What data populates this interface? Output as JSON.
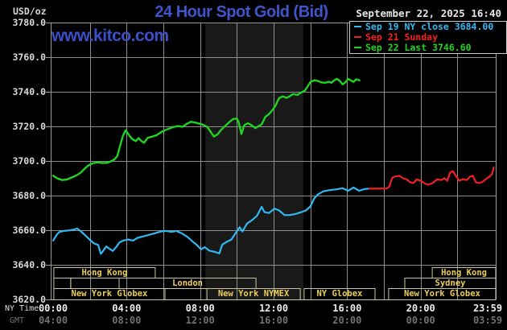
{
  "header": {
    "unit_label": "USD/oz",
    "title": "24 Hour Spot Gold (Bid)",
    "datetime": "September 22, 2025 16:40",
    "watermark": "www.kitco.com"
  },
  "legend": {
    "entries": [
      {
        "label": "Sep 19 NY close 3684.00",
        "color": "#2fb9f2"
      },
      {
        "label": "Sep 21 Sunday",
        "color": "#f22020"
      },
      {
        "label": "Sep 22 Last 3746.60",
        "color": "#1fd41f"
      }
    ]
  },
  "colors": {
    "background": "#000000",
    "title_blue": "#3e56cc",
    "watermark_blue": "#3a50ca",
    "grid": "#8e8e8e",
    "plot_border": "#9a9a9a",
    "bottom_border_khaki": "#c9c99b",
    "session_box": "#c6c69b",
    "session_text": "#eacd58",
    "nymex_shading": "#191919",
    "cyan_series": "#2fb9f2",
    "red_series": "#f22020",
    "green_series": "#1fd41f"
  },
  "chart_data": {
    "type": "line",
    "title": "24 Hour Spot Gold (Bid)",
    "unit": "USD/oz",
    "x_axis": {
      "primary_label": "NY Time",
      "secondary_label": "GMT",
      "range_hours": [
        0,
        24
      ],
      "ticks": [
        {
          "hour": 0,
          "ny": "00:00",
          "gmt": "04:00"
        },
        {
          "hour": 4,
          "ny": "04:00",
          "gmt": "08:00"
        },
        {
          "hour": 8,
          "ny": "08:00",
          "gmt": "12:00"
        },
        {
          "hour": 12,
          "ny": "12:00",
          "gmt": "16:00"
        },
        {
          "hour": 16,
          "ny": "16:00",
          "gmt": "20:00"
        },
        {
          "hour": 20,
          "ny": "20:00",
          "gmt": "00:00"
        },
        {
          "hour": 23.983,
          "ny": "23:59",
          "gmt": "03:59"
        }
      ]
    },
    "y_axis": {
      "min": 3620,
      "max": 3780,
      "tick_step": 20,
      "grid": true
    },
    "nymex_floor_shading_hours": [
      8.28,
      13.62
    ],
    "sessions": [
      {
        "row": 1,
        "label": "Hong Kong",
        "start_hour": 0.04,
        "end_hour": 5.56
      },
      {
        "row": 1,
        "label": "Hong Kong",
        "start_hour": 20.63,
        "end_hour": 24.1
      },
      {
        "row": 2,
        "label": "",
        "start_hour": 0.04,
        "end_hour": 0.96
      },
      {
        "row": 2,
        "label": "",
        "start_hour": 0.96,
        "end_hour": 3.59
      },
      {
        "row": 2,
        "label": "London",
        "start_hour": 3.59,
        "end_hour": 11.04
      },
      {
        "row": 2,
        "label": "Sydney",
        "start_hour": 19.14,
        "end_hour": 24.1
      },
      {
        "row": 3,
        "label": "New York Globex",
        "start_hour": 0.04,
        "end_hour": 6.09
      },
      {
        "row": 3,
        "label": "New York NYMEX",
        "start_hour": 8.37,
        "end_hour": 13.45
      },
      {
        "row": 3,
        "label": "NY Globex",
        "start_hour": 13.66,
        "end_hour": 17.52
      },
      {
        "row": 3,
        "label": "New York Globex",
        "start_hour": 18.26,
        "end_hour": 24.1
      }
    ],
    "series": [
      {
        "name": "Sep 19 NY close",
        "close_value": 3684.0,
        "color": "#2fb9f2",
        "points": [
          [
            0,
            3654
          ],
          [
            0.2,
            3657.5
          ],
          [
            0.35,
            3659
          ],
          [
            0.6,
            3659.6
          ],
          [
            0.9,
            3659.9
          ],
          [
            1.15,
            3660.4
          ],
          [
            1.3,
            3661
          ],
          [
            1.5,
            3659.5
          ],
          [
            1.7,
            3657.5
          ],
          [
            1.95,
            3655
          ],
          [
            2.2,
            3652.5
          ],
          [
            2.45,
            3651.5
          ],
          [
            2.6,
            3646.3
          ],
          [
            2.75,
            3648.5
          ],
          [
            2.9,
            3650.6
          ],
          [
            3.05,
            3649.4
          ],
          [
            3.25,
            3648
          ],
          [
            3.45,
            3650.5
          ],
          [
            3.6,
            3652.8
          ],
          [
            3.8,
            3654
          ],
          [
            4.1,
            3654.6
          ],
          [
            4.35,
            3654
          ],
          [
            4.6,
            3655.6
          ],
          [
            4.9,
            3656.4
          ],
          [
            5.2,
            3657.2
          ],
          [
            5.5,
            3658.1
          ],
          [
            5.85,
            3659.2
          ],
          [
            6.15,
            3659.6
          ],
          [
            6.45,
            3659
          ],
          [
            6.7,
            3659.6
          ],
          [
            7.0,
            3658.2
          ],
          [
            7.3,
            3656.2
          ],
          [
            7.6,
            3653.4
          ],
          [
            7.85,
            3651.2
          ],
          [
            8.05,
            3648.9
          ],
          [
            8.25,
            3650.2
          ],
          [
            8.5,
            3648.2
          ],
          [
            8.75,
            3647.6
          ],
          [
            9.05,
            3646.6
          ],
          [
            9.2,
            3651.6
          ],
          [
            9.45,
            3653.3
          ],
          [
            9.7,
            3654.6
          ],
          [
            9.95,
            3658.6
          ],
          [
            10.15,
            3661.7
          ],
          [
            10.3,
            3659.2
          ],
          [
            10.55,
            3663.8
          ],
          [
            10.85,
            3666
          ],
          [
            11.1,
            3668.4
          ],
          [
            11.35,
            3673.6
          ],
          [
            11.5,
            3670.4
          ],
          [
            11.75,
            3669.9
          ],
          [
            12.05,
            3672.5
          ],
          [
            12.3,
            3671.4
          ],
          [
            12.6,
            3668.7
          ],
          [
            12.9,
            3668.8
          ],
          [
            13.2,
            3669.4
          ],
          [
            13.5,
            3670.4
          ],
          [
            13.75,
            3671.4
          ],
          [
            14.0,
            3673.7
          ],
          [
            14.2,
            3678.2
          ],
          [
            14.4,
            3680.6
          ],
          [
            14.7,
            3682.4
          ],
          [
            15.0,
            3683.1
          ],
          [
            15.4,
            3683.6
          ],
          [
            15.75,
            3684.3
          ],
          [
            16.05,
            3682.8
          ],
          [
            16.35,
            3684.7
          ],
          [
            16.65,
            3682.8
          ],
          [
            16.95,
            3683.8
          ],
          [
            17.2,
            3684.0
          ]
        ]
      },
      {
        "name": "Sep 21 Sunday",
        "color": "#f22020",
        "points": [
          [
            17.2,
            3684.0
          ],
          [
            17.7,
            3684.0
          ],
          [
            18.15,
            3684.1
          ],
          [
            18.3,
            3685.2
          ],
          [
            18.45,
            3690.2
          ],
          [
            18.6,
            3691.0
          ],
          [
            18.85,
            3691.4
          ],
          [
            19.05,
            3690.0
          ],
          [
            19.25,
            3689.4
          ],
          [
            19.4,
            3687.8
          ],
          [
            19.6,
            3687.2
          ],
          [
            19.8,
            3689.4
          ],
          [
            20.0,
            3688.5
          ],
          [
            20.2,
            3687.2
          ],
          [
            20.4,
            3686.3
          ],
          [
            20.65,
            3687.2
          ],
          [
            20.9,
            3689.4
          ],
          [
            21.1,
            3689.0
          ],
          [
            21.3,
            3690.0
          ],
          [
            21.45,
            3688.6
          ],
          [
            21.6,
            3693.2
          ],
          [
            21.75,
            3694.2
          ],
          [
            21.95,
            3690.9
          ],
          [
            22.1,
            3688.6
          ],
          [
            22.3,
            3689.5
          ],
          [
            22.5,
            3689.0
          ],
          [
            22.7,
            3691.0
          ],
          [
            22.85,
            3691.4
          ],
          [
            23.0,
            3687.8
          ],
          [
            23.15,
            3687.2
          ],
          [
            23.35,
            3687.8
          ],
          [
            23.55,
            3689.5
          ],
          [
            23.75,
            3691.0
          ],
          [
            23.88,
            3692.3
          ],
          [
            23.98,
            3696.3
          ]
        ]
      },
      {
        "name": "Sep 22 Last",
        "last_value": 3746.6,
        "color": "#1fd41f",
        "points": [
          [
            0,
            3691.5
          ],
          [
            0.25,
            3689.8
          ],
          [
            0.5,
            3689.0
          ],
          [
            0.75,
            3689.3
          ],
          [
            1.0,
            3690.4
          ],
          [
            1.25,
            3691.6
          ],
          [
            1.5,
            3693.2
          ],
          [
            1.7,
            3695.4
          ],
          [
            1.9,
            3697.3
          ],
          [
            2.15,
            3698.7
          ],
          [
            2.45,
            3699.2
          ],
          [
            2.7,
            3698.8
          ],
          [
            2.95,
            3699.0
          ],
          [
            3.15,
            3699.8
          ],
          [
            3.35,
            3701.0
          ],
          [
            3.5,
            3703.0
          ],
          [
            3.65,
            3709.0
          ],
          [
            3.8,
            3714.6
          ],
          [
            3.95,
            3717.7
          ],
          [
            4.1,
            3715.4
          ],
          [
            4.3,
            3712.7
          ],
          [
            4.5,
            3711.5
          ],
          [
            4.65,
            3713.2
          ],
          [
            4.8,
            3711.6
          ],
          [
            4.95,
            3710.5
          ],
          [
            5.15,
            3713.4
          ],
          [
            5.4,
            3714.1
          ],
          [
            5.65,
            3715.0
          ],
          [
            5.9,
            3716.8
          ],
          [
            6.2,
            3718.3
          ],
          [
            6.5,
            3719.5
          ],
          [
            6.8,
            3720.2
          ],
          [
            7.05,
            3719.7
          ],
          [
            7.25,
            3721.3
          ],
          [
            7.5,
            3722.7
          ],
          [
            7.8,
            3722.0
          ],
          [
            8.1,
            3721.2
          ],
          [
            8.4,
            3719.6
          ],
          [
            8.6,
            3716.4
          ],
          [
            8.75,
            3714.1
          ],
          [
            8.95,
            3715.4
          ],
          [
            9.15,
            3718.0
          ],
          [
            9.4,
            3720.6
          ],
          [
            9.6,
            3722.6
          ],
          [
            9.8,
            3724.3
          ],
          [
            10.0,
            3724.5
          ],
          [
            10.1,
            3722.4
          ],
          [
            10.25,
            3715.6
          ],
          [
            10.4,
            3720.7
          ],
          [
            10.6,
            3721.8
          ],
          [
            10.8,
            3720.7
          ],
          [
            11.0,
            3719.0
          ],
          [
            11.15,
            3719.9
          ],
          [
            11.35,
            3721.2
          ],
          [
            11.55,
            3725.5
          ],
          [
            11.75,
            3727.1
          ],
          [
            11.95,
            3729.6
          ],
          [
            12.1,
            3732.0
          ],
          [
            12.3,
            3736.4
          ],
          [
            12.5,
            3737.3
          ],
          [
            12.7,
            3736.5
          ],
          [
            12.85,
            3737.3
          ],
          [
            13.05,
            3738.6
          ],
          [
            13.3,
            3738.2
          ],
          [
            13.5,
            3739.6
          ],
          [
            13.7,
            3740.7
          ],
          [
            13.85,
            3743.0
          ],
          [
            14.0,
            3745.6
          ],
          [
            14.2,
            3746.6
          ],
          [
            14.4,
            3746.3
          ],
          [
            14.6,
            3745.4
          ],
          [
            14.8,
            3745.2
          ],
          [
            15.0,
            3745.7
          ],
          [
            15.15,
            3745.2
          ],
          [
            15.3,
            3746.6
          ],
          [
            15.45,
            3747.5
          ],
          [
            15.6,
            3746.3
          ],
          [
            15.75,
            3744.3
          ],
          [
            15.9,
            3745.4
          ],
          [
            16.05,
            3747.4
          ],
          [
            16.2,
            3746.6
          ],
          [
            16.35,
            3745.7
          ],
          [
            16.5,
            3747.2
          ],
          [
            16.67,
            3746.6
          ]
        ]
      }
    ]
  }
}
